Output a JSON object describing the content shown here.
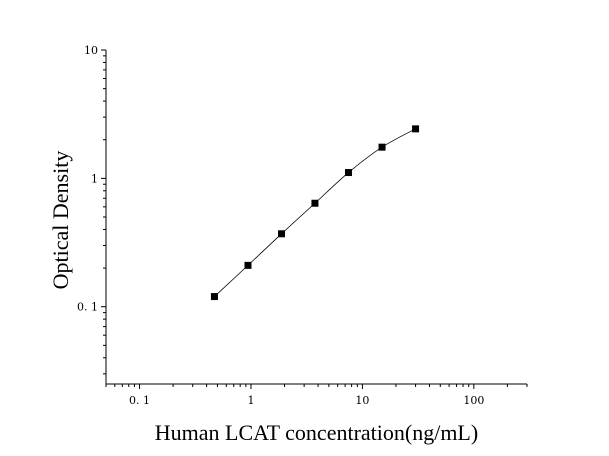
{
  "chart_data": {
    "type": "scatter",
    "title": "",
    "xlabel": "Human LCAT concentration(ng/mL)",
    "ylabel": "Optical Density",
    "xscale": "log",
    "yscale": "log",
    "xlim": [
      0.05,
      300
    ],
    "ylim": [
      0.025,
      10
    ],
    "grid": false,
    "legend": "none",
    "x_ticks": [
      {
        "value": 0.1,
        "label": "0. 1"
      },
      {
        "value": 1,
        "label": "1"
      },
      {
        "value": 10,
        "label": "10"
      },
      {
        "value": 100,
        "label": "100"
      }
    ],
    "y_ticks": [
      {
        "value": 0.1,
        "label": "0. 1"
      },
      {
        "value": 1,
        "label": "1"
      },
      {
        "value": 10,
        "label": "10"
      }
    ],
    "series": [
      {
        "x": [
          0.47,
          0.94,
          1.88,
          3.75,
          7.5,
          15,
          30
        ],
        "y": [
          0.12,
          0.21,
          0.37,
          0.64,
          1.11,
          1.75,
          2.43
        ],
        "marker": "square",
        "fit_curve": true,
        "color": "#000000"
      }
    ]
  }
}
